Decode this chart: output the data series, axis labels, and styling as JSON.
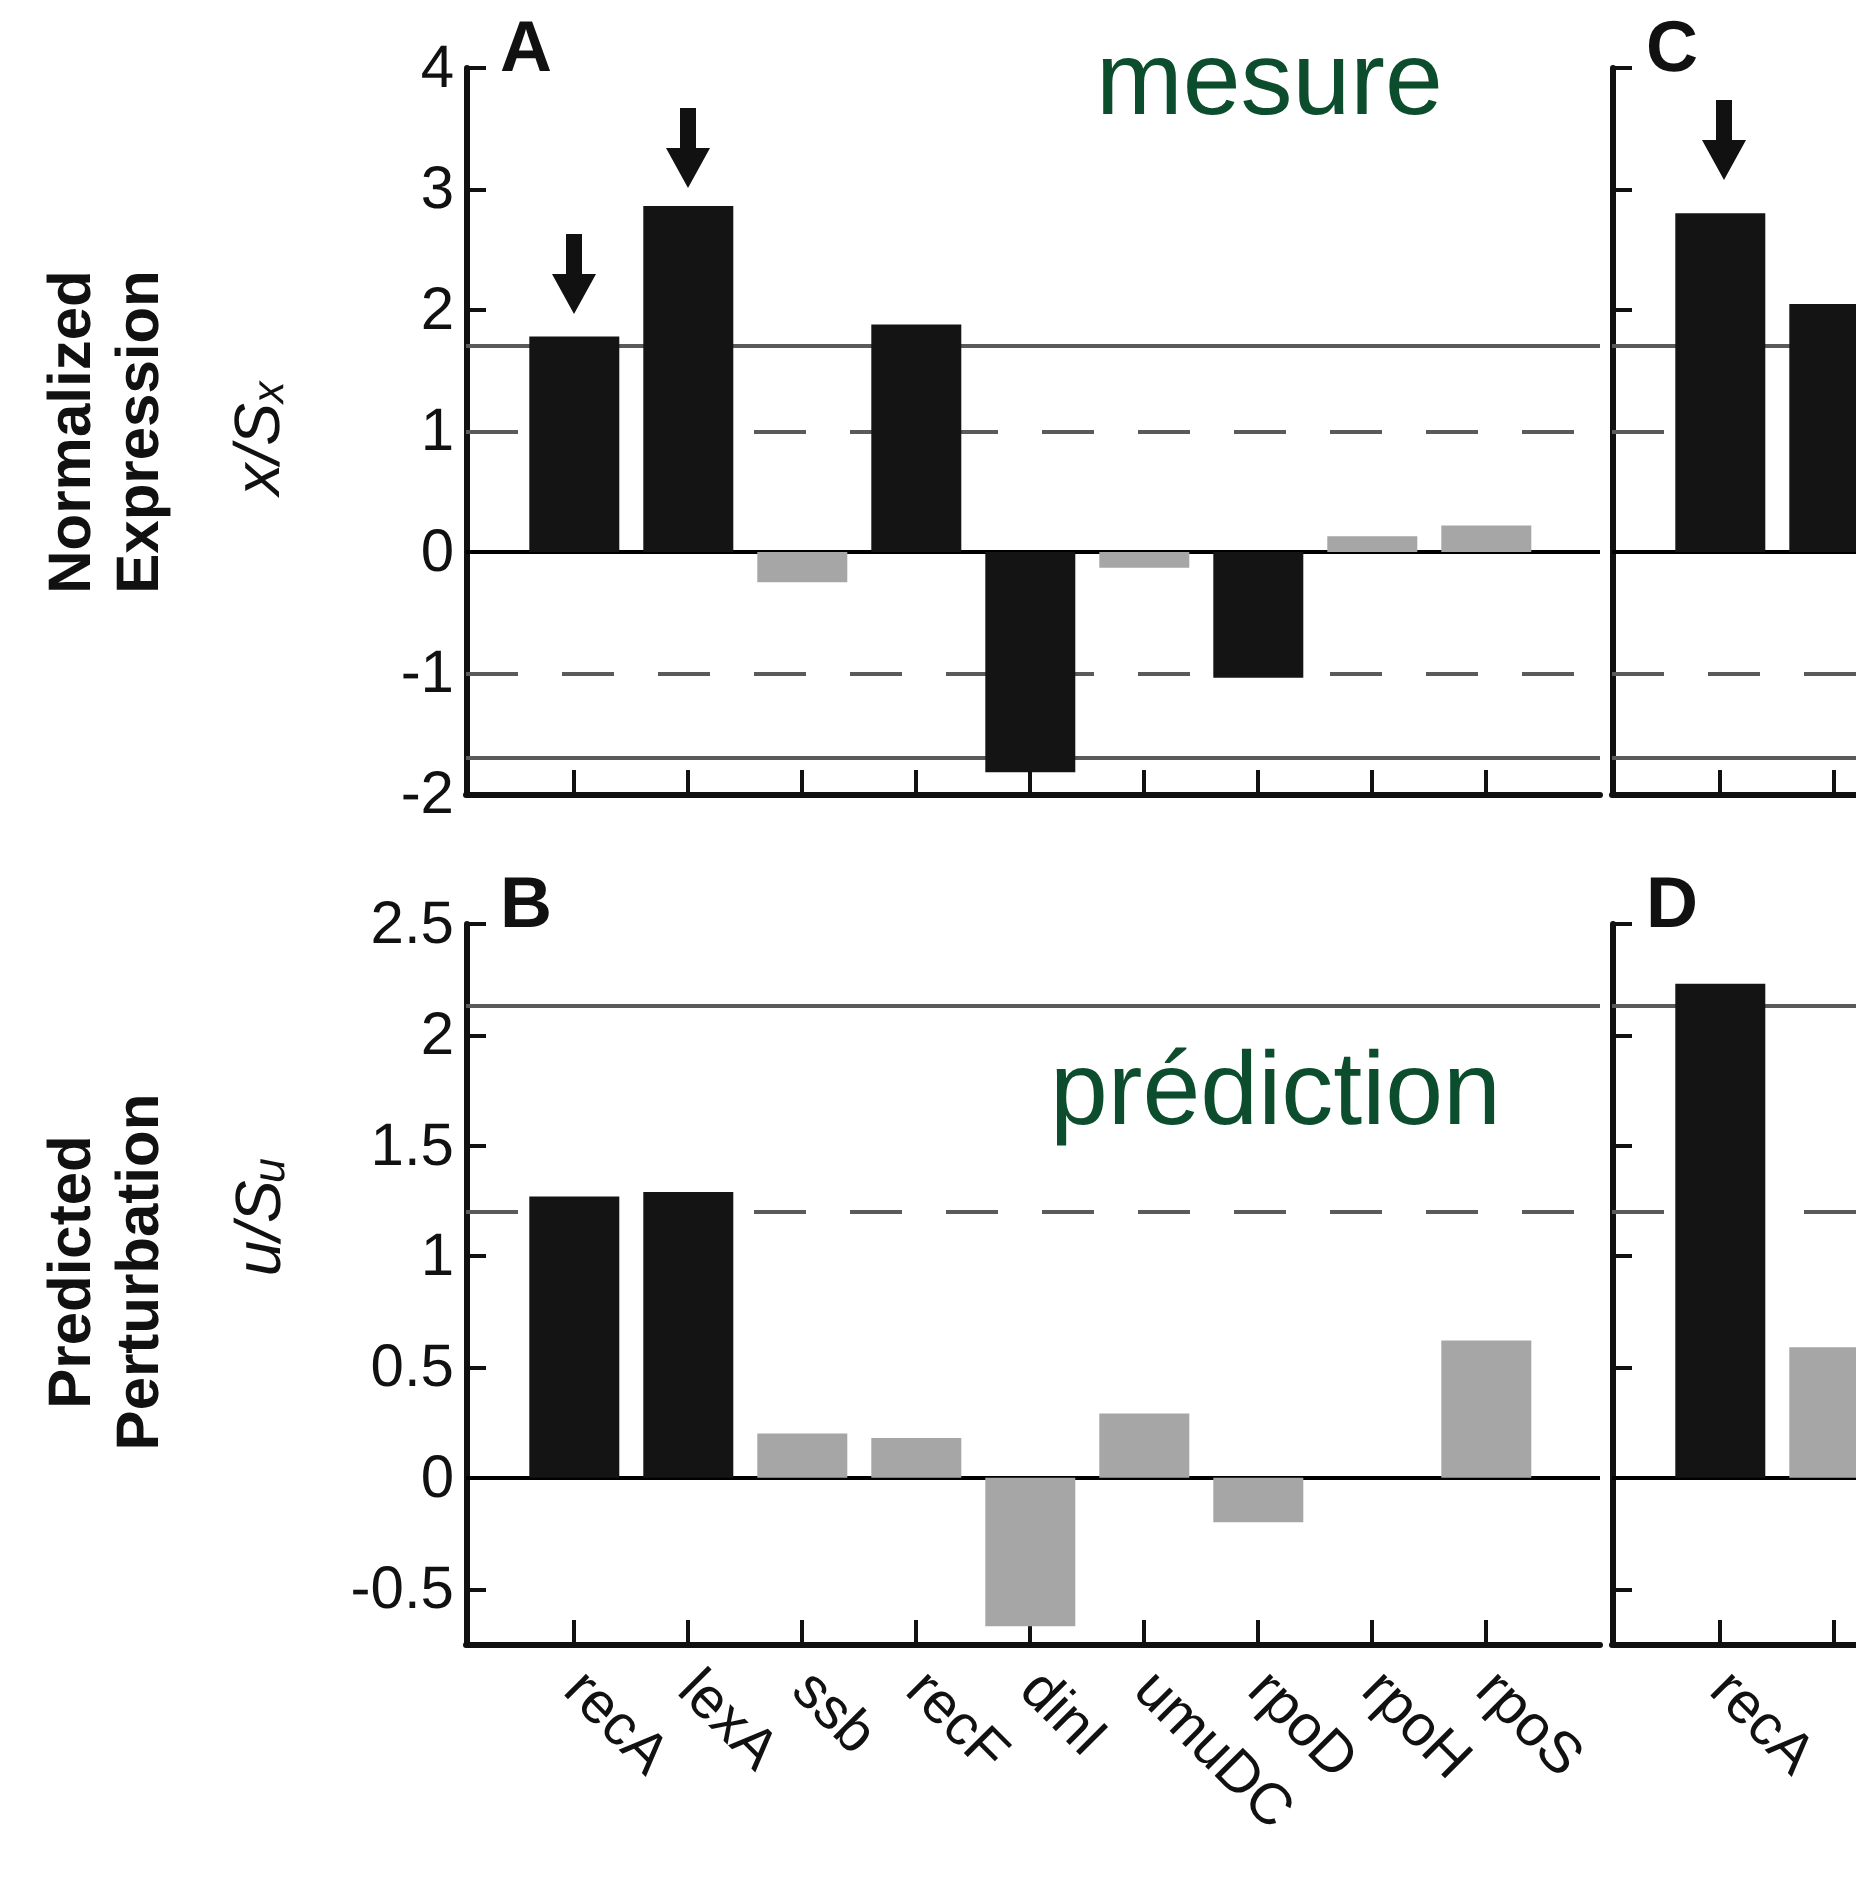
{
  "chart_data": [
    {
      "type": "bar",
      "title": "A",
      "ylabel": "Normalized Expression",
      "annotations": [
        "mesure",
        "x/Sₓ"
      ],
      "categories": [
        null,
        null,
        null,
        null,
        null,
        null,
        null,
        null,
        null
      ],
      "values": [
        1.78,
        2.86,
        -0.25,
        1.88,
        -1.82,
        -0.13,
        -1.04,
        0.13,
        0.22
      ],
      "colors": [
        "#141414",
        "#141414",
        "#a6a6a6",
        "#141414",
        "#141414",
        "#a6a6a6",
        "#141414",
        "#a6a6a6",
        "#a6a6a6"
      ],
      "ylim": [
        -2,
        4
      ],
      "yticks": [
        -2,
        -1,
        0,
        1,
        2,
        3,
        4
      ],
      "tick_labels": "y",
      "ref_lines": [
        {
          "axis": "y",
          "value": 0,
          "color": "#000000",
          "line_style": "solid"
        },
        {
          "axis": "y",
          "value": 1.7,
          "color": "#5a5a5a",
          "line_style": "solid"
        },
        {
          "axis": "y",
          "value": 1,
          "color": "#5a5a5a",
          "line_style": "dashed"
        },
        {
          "axis": "y",
          "value": -1,
          "color": "#5a5a5a",
          "line_style": "dashed"
        },
        {
          "axis": "y",
          "value": -1.7,
          "color": "#5a5a5a",
          "line_style": "solid"
        }
      ]
    },
    {
      "type": "bar",
      "title": "B",
      "ylabel": "Predicted Perturbation",
      "annotations": [
        "prédiction",
        "u/Sᵤ"
      ],
      "categories": [
        "recA",
        "lexA",
        "ssb",
        "recF",
        "dinI",
        "umuDC",
        "rpoD",
        "rpoH",
        "rpoS"
      ],
      "values": [
        1.27,
        1.29,
        0.2,
        0.18,
        -0.67,
        0.29,
        -0.2,
        0,
        0.62
      ],
      "colors": [
        "#141414",
        "#141414",
        "#a6a6a6",
        "#a6a6a6",
        "#a6a6a6",
        "#a6a6a6",
        "#a6a6a6",
        "#a6a6a6",
        "#a6a6a6"
      ],
      "ylim": [
        -0.75,
        2.5
      ],
      "yticks": [
        -0.5,
        0,
        0.5,
        1,
        1.5,
        2,
        2.5
      ],
      "ref_lines": [
        {
          "axis": "y",
          "value": 0,
          "color": "#000000",
          "line_style": "solid"
        },
        {
          "axis": "y",
          "value": 2.13,
          "color": "#5a5a5a",
          "line_style": "solid"
        },
        {
          "axis": "y",
          "value": 1.2,
          "color": "#5a5a5a",
          "line_style": "dashed"
        }
      ]
    },
    {
      "type": "bar",
      "title": "C",
      "categories": [
        null,
        null
      ],
      "values": [
        2.8,
        2.05
      ],
      "colors": [
        "#141414",
        "#141414"
      ],
      "ylim": [
        -2,
        4
      ],
      "yticks": [
        -2,
        -1,
        0,
        1,
        2,
        3,
        4
      ],
      "tick_labels": false,
      "ref_lines": [
        {
          "axis": "y",
          "value": 0,
          "color": "#000000",
          "line_style": "solid"
        },
        {
          "axis": "y",
          "value": 1.7,
          "color": "#5a5a5a",
          "line_style": "solid"
        },
        {
          "axis": "y",
          "value": 1,
          "color": "#5a5a5a",
          "line_style": "dashed"
        },
        {
          "axis": "y",
          "value": -1,
          "color": "#5a5a5a",
          "line_style": "dashed"
        },
        {
          "axis": "y",
          "value": -1.7,
          "color": "#5a5a5a",
          "line_style": "solid"
        }
      ]
    },
    {
      "type": "bar",
      "title": "D",
      "categories": [
        "recA",
        null
      ],
      "values": [
        2.23,
        0.59
      ],
      "colors": [
        "#141414",
        "#a6a6a6"
      ],
      "ylim": [
        -0.75,
        2.5
      ],
      "yticks": [
        -0.5,
        0,
        0.5,
        1,
        1.5,
        2,
        2.5
      ],
      "tick_labels": "x",
      "ref_lines": [
        {
          "axis": "y",
          "value": 0,
          "color": "#000000",
          "line_style": "solid"
        },
        {
          "axis": "y",
          "value": 2.13,
          "color": "#5a5a5a",
          "line_style": "solid"
        },
        {
          "axis": "y",
          "value": 1.2,
          "color": "#5a5a5a",
          "line_style": "dashed"
        }
      ]
    }
  ]
}
